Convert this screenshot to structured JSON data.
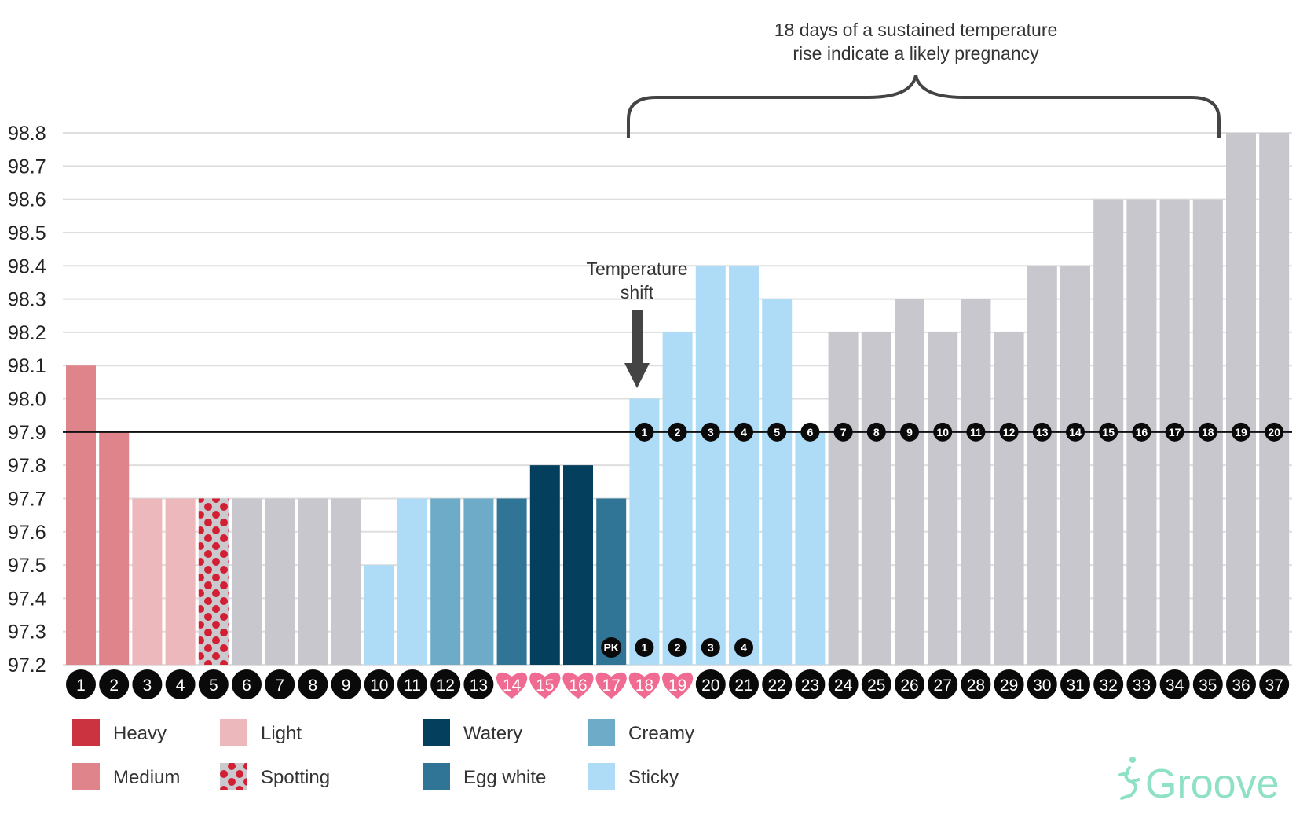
{
  "chart_data": {
    "type": "bar",
    "ylim": [
      97.2,
      98.8
    ],
    "yticks": [
      "97.2",
      "97.3",
      "97.4",
      "97.5",
      "97.6",
      "97.7",
      "97.8",
      "97.9",
      "98.0",
      "98.1",
      "98.2",
      "98.3",
      "98.4",
      "98.5",
      "98.6",
      "98.7",
      "98.8"
    ],
    "grid": true,
    "coverline": 97.9,
    "days": [
      "1",
      "2",
      "3",
      "4",
      "5",
      "6",
      "7",
      "8",
      "9",
      "10",
      "11",
      "12",
      "13",
      "14",
      "15",
      "16",
      "17",
      "18",
      "19",
      "20",
      "21",
      "22",
      "23",
      "24",
      "25",
      "26",
      "27",
      "28",
      "29",
      "30",
      "31",
      "32",
      "33",
      "34",
      "35",
      "36",
      "37"
    ],
    "values": [
      98.1,
      97.9,
      97.7,
      97.7,
      97.7,
      97.7,
      97.7,
      97.7,
      97.7,
      97.5,
      97.7,
      97.7,
      97.7,
      97.7,
      97.8,
      97.8,
      97.7,
      98.0,
      98.2,
      98.4,
      98.4,
      98.3,
      97.9,
      98.2,
      98.2,
      98.3,
      98.2,
      98.3,
      98.2,
      98.4,
      98.4,
      98.6,
      98.6,
      98.6,
      98.6,
      98.8,
      98.8
    ],
    "categories": [
      "medium",
      "medium",
      "light",
      "light",
      "spotting",
      "none",
      "none",
      "none",
      "none",
      "sticky",
      "sticky",
      "creamy",
      "creamy",
      "egg_white",
      "watery",
      "watery",
      "egg_white",
      "sticky",
      "sticky",
      "sticky",
      "sticky",
      "sticky",
      "sticky",
      "none",
      "none",
      "none",
      "none",
      "none",
      "none",
      "none",
      "none",
      "none",
      "none",
      "none",
      "none",
      "none",
      "none"
    ],
    "heart_days": [
      "14",
      "15",
      "16",
      "17",
      "18",
      "19"
    ],
    "high_temp_counts": [
      "1",
      "2",
      "3",
      "4",
      "5",
      "6",
      "7",
      "8",
      "9",
      "10",
      "11",
      "12",
      "13",
      "14",
      "15",
      "16",
      "17",
      "18",
      "19",
      "20"
    ],
    "high_temp_start_day": 18,
    "peak_label": "PK",
    "peak_day": 17,
    "peak_counts": [
      "1",
      "2",
      "3",
      "4"
    ],
    "annotations": {
      "shift_line1": "Temperature",
      "shift_line2": "shift",
      "brace_line1": "18 days of a sustained temperature",
      "brace_line2": "rise indicate a likely pregnancy"
    },
    "legend": [
      {
        "label": "Heavy",
        "color": "#cc3340",
        "key": "heavy"
      },
      {
        "label": "Medium",
        "color": "#e0848b",
        "key": "medium"
      },
      {
        "label": "Light",
        "color": "#ecb8bc",
        "key": "light"
      },
      {
        "label": "Spotting",
        "color": "#c9c9ce",
        "key": "spotting"
      },
      {
        "label": "Watery",
        "color": "#043f5e",
        "key": "watery"
      },
      {
        "label": "Egg white",
        "color": "#307496",
        "key": "egg_white"
      },
      {
        "label": "Creamy",
        "color": "#6eabc9",
        "key": "creamy"
      },
      {
        "label": "Sticky",
        "color": "#aedcf6",
        "key": "sticky"
      }
    ],
    "colors": {
      "none": "#c8c7cd",
      "spot_dot": "#d21f33",
      "heart": "#ef6b92",
      "circle": "#0a0a0a",
      "coverline": "#111111",
      "grid": "#dedede",
      "arrow": "#444444",
      "brace": "#444444"
    }
  },
  "brand": {
    "logo_text": "Groove",
    "logo_color": "#8ee0c6"
  }
}
